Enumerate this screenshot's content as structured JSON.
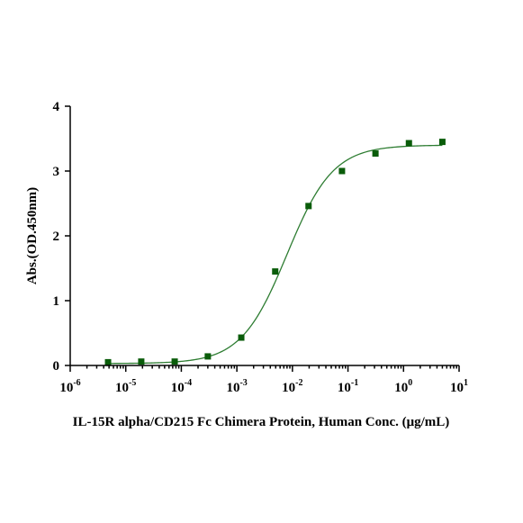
{
  "chart_data": {
    "type": "scatter",
    "title": "",
    "xlabel": "IL-15R alpha/CD215 Fc Chimera Protein, Human Conc. (μg/mL)",
    "ylabel": "Abs.(OD.450nm)",
    "xscale": "log",
    "xlim": [
      1e-06,
      10
    ],
    "ylim": [
      0,
      4
    ],
    "x_ticks": [
      {
        "base": "10",
        "exp": "-6",
        "value": 1e-06
      },
      {
        "base": "10",
        "exp": "-5",
        "value": 1e-05
      },
      {
        "base": "10",
        "exp": "-4",
        "value": 0.0001
      },
      {
        "base": "10",
        "exp": "-3",
        "value": 0.001
      },
      {
        "base": "10",
        "exp": "-2",
        "value": 0.01
      },
      {
        "base": "10",
        "exp": "-1",
        "value": 0.1
      },
      {
        "base": "10",
        "exp": "0",
        "value": 1
      },
      {
        "base": "10",
        "exp": "1",
        "value": 10
      }
    ],
    "y_ticks": [
      "0",
      "1",
      "2",
      "3",
      "4"
    ],
    "grid": false,
    "marker_color": "#0a5c0a",
    "curve_color": "#2e7d32",
    "series": [
      {
        "marker": "square",
        "x": [
          4.8e-06,
          1.9e-05,
          7.6e-05,
          0.0003,
          0.0012,
          0.0049,
          0.0195,
          0.078,
          0.3125,
          1.25,
          5
        ],
        "y": [
          0.05,
          0.06,
          0.06,
          0.14,
          0.43,
          1.45,
          2.46,
          3.0,
          3.27,
          3.43,
          3.45
        ]
      }
    ],
    "fit": {
      "model": "4PL",
      "bottom": 0.03,
      "top": 3.4,
      "ec50": 0.008,
      "hill": 1.05
    }
  }
}
